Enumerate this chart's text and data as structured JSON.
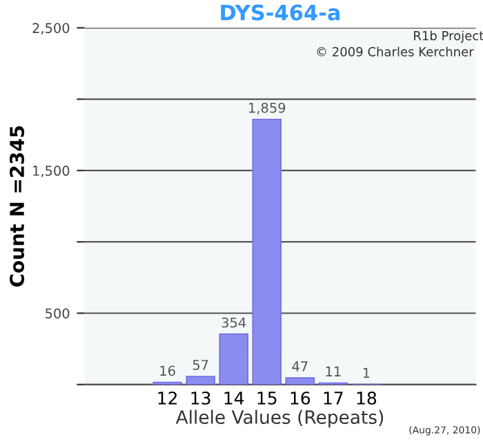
{
  "chart_data": {
    "type": "bar",
    "title": "DYS-464-a",
    "xlabel": "Allele Values (Repeats)",
    "ylabel": "Count N =2345",
    "categories": [
      "12",
      "13",
      "14",
      "15",
      "16",
      "17",
      "18"
    ],
    "values": [
      16,
      57,
      354,
      1859,
      47,
      11,
      1
    ],
    "value_labels": [
      "16",
      "57",
      "354",
      "1,859",
      "47",
      "11",
      "1"
    ],
    "color": "#8a8cf0",
    "ylim": [
      0,
      2500
    ],
    "yticks": [
      {
        "value": 0,
        "label": null
      },
      500,
      {
        "value": 1000,
        "label": null
      },
      {
        "value": 1500,
        "label": "1,500"
      },
      {
        "value": 2000,
        "label": null
      },
      {
        "value": 2500,
        "label": "2,500"
      }
    ],
    "grid": "y",
    "annotations": [
      "R1b Project",
      "© 2009 Charles Kerchner",
      "(Aug.27, 2010)"
    ]
  }
}
